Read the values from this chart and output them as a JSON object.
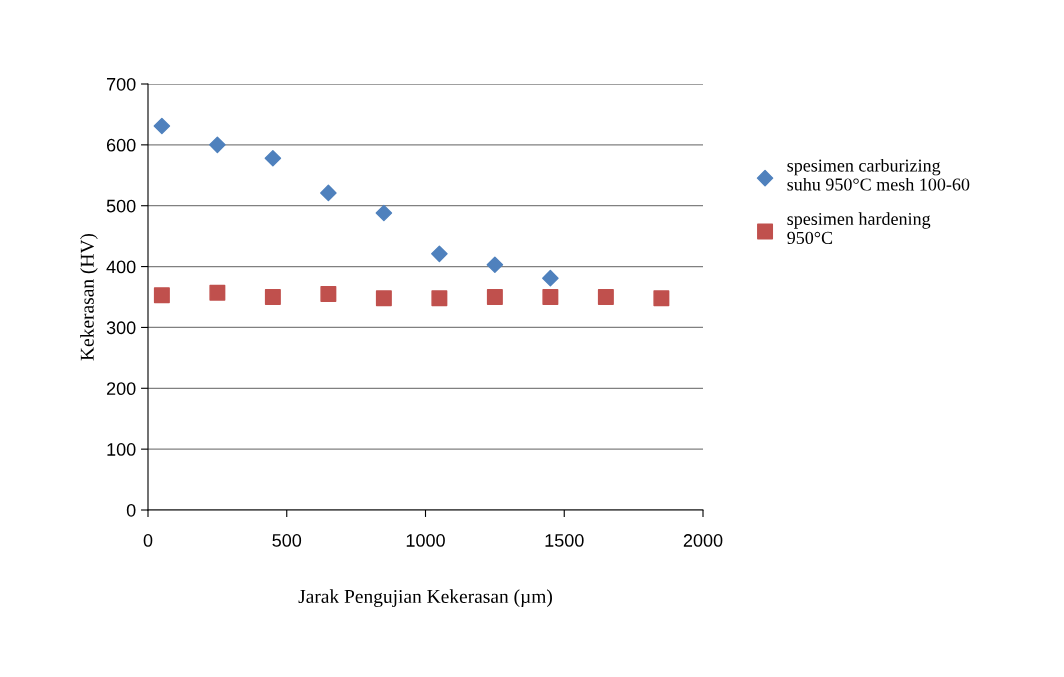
{
  "chart_data": {
    "type": "scatter",
    "xlabel": "Jarak Pengujian Kekerasan (µm)",
    "ylabel": "Kekerasan (HV)",
    "x": [
      50,
      250,
      450,
      650,
      850,
      1050,
      1250,
      1450,
      1650,
      1850
    ],
    "series": [
      {
        "name": "spesimen carburizing\nsuhu 950°C mesh 100-60",
        "color": "#4f81bd",
        "marker": "diamond",
        "values": [
          631,
          600,
          578,
          521,
          488,
          421,
          403,
          381,
          null,
          null
        ]
      },
      {
        "name": "spesimen hardening\n950°C",
        "color": "#c0504d",
        "marker": "square",
        "values": [
          353,
          357,
          350,
          355,
          348,
          348,
          350,
          350,
          350,
          348
        ]
      }
    ],
    "xlim": [
      0,
      2000
    ],
    "xticks": [
      0,
      500,
      1000,
      1500,
      2000
    ],
    "ylim": [
      0,
      700
    ],
    "yticks": [
      0,
      100,
      200,
      300,
      400,
      500,
      600,
      700
    ],
    "grid": "y",
    "legend": "right"
  }
}
